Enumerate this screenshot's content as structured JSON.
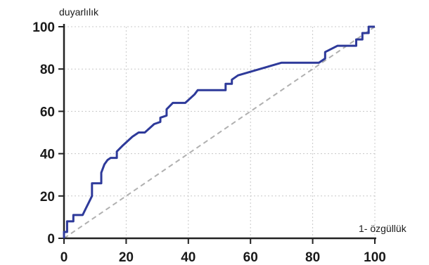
{
  "chart_data": {
    "type": "line",
    "ylabel": "duyarlılık",
    "xlabel": "1- özgüllük",
    "xlim": [
      0,
      100
    ],
    "ylim": [
      0,
      100
    ],
    "x_ticks": [
      "0",
      "20",
      "40",
      "60",
      "80",
      "100"
    ],
    "y_ticks": [
      "0",
      "20",
      "40",
      "60",
      "80",
      "100"
    ],
    "grid": true,
    "reference_line": {
      "style": "dashed",
      "color": "#b0b0b0",
      "points": [
        [
          0,
          0
        ],
        [
          100,
          100
        ]
      ]
    },
    "series": [
      {
        "color": "#2e3a9a",
        "points": [
          [
            0,
            0
          ],
          [
            0,
            3
          ],
          [
            1,
            3
          ],
          [
            1,
            6
          ],
          [
            1,
            8
          ],
          [
            3,
            8
          ],
          [
            3,
            11
          ],
          [
            6,
            11
          ],
          [
            7,
            14
          ],
          [
            8,
            17
          ],
          [
            9,
            20
          ],
          [
            9,
            23
          ],
          [
            9,
            26
          ],
          [
            12,
            26
          ],
          [
            12,
            31
          ],
          [
            13,
            35
          ],
          [
            14,
            37
          ],
          [
            15,
            38
          ],
          [
            17,
            38
          ],
          [
            17,
            41
          ],
          [
            19,
            44
          ],
          [
            22,
            48
          ],
          [
            24,
            50
          ],
          [
            26,
            50
          ],
          [
            29,
            54
          ],
          [
            31,
            55
          ],
          [
            31,
            57
          ],
          [
            33,
            58
          ],
          [
            33,
            61
          ],
          [
            35,
            64
          ],
          [
            39,
            64
          ],
          [
            42,
            68
          ],
          [
            43,
            70
          ],
          [
            52,
            70
          ],
          [
            52,
            73
          ],
          [
            54,
            73
          ],
          [
            54,
            75
          ],
          [
            56,
            77
          ],
          [
            70,
            83
          ],
          [
            82,
            83
          ],
          [
            84,
            85
          ],
          [
            84,
            88
          ],
          [
            88,
            91
          ],
          [
            94,
            91
          ],
          [
            94,
            94
          ],
          [
            96,
            94
          ],
          [
            96,
            97
          ],
          [
            98,
            97
          ],
          [
            98,
            100
          ],
          [
            100,
            100
          ]
        ]
      }
    ]
  }
}
